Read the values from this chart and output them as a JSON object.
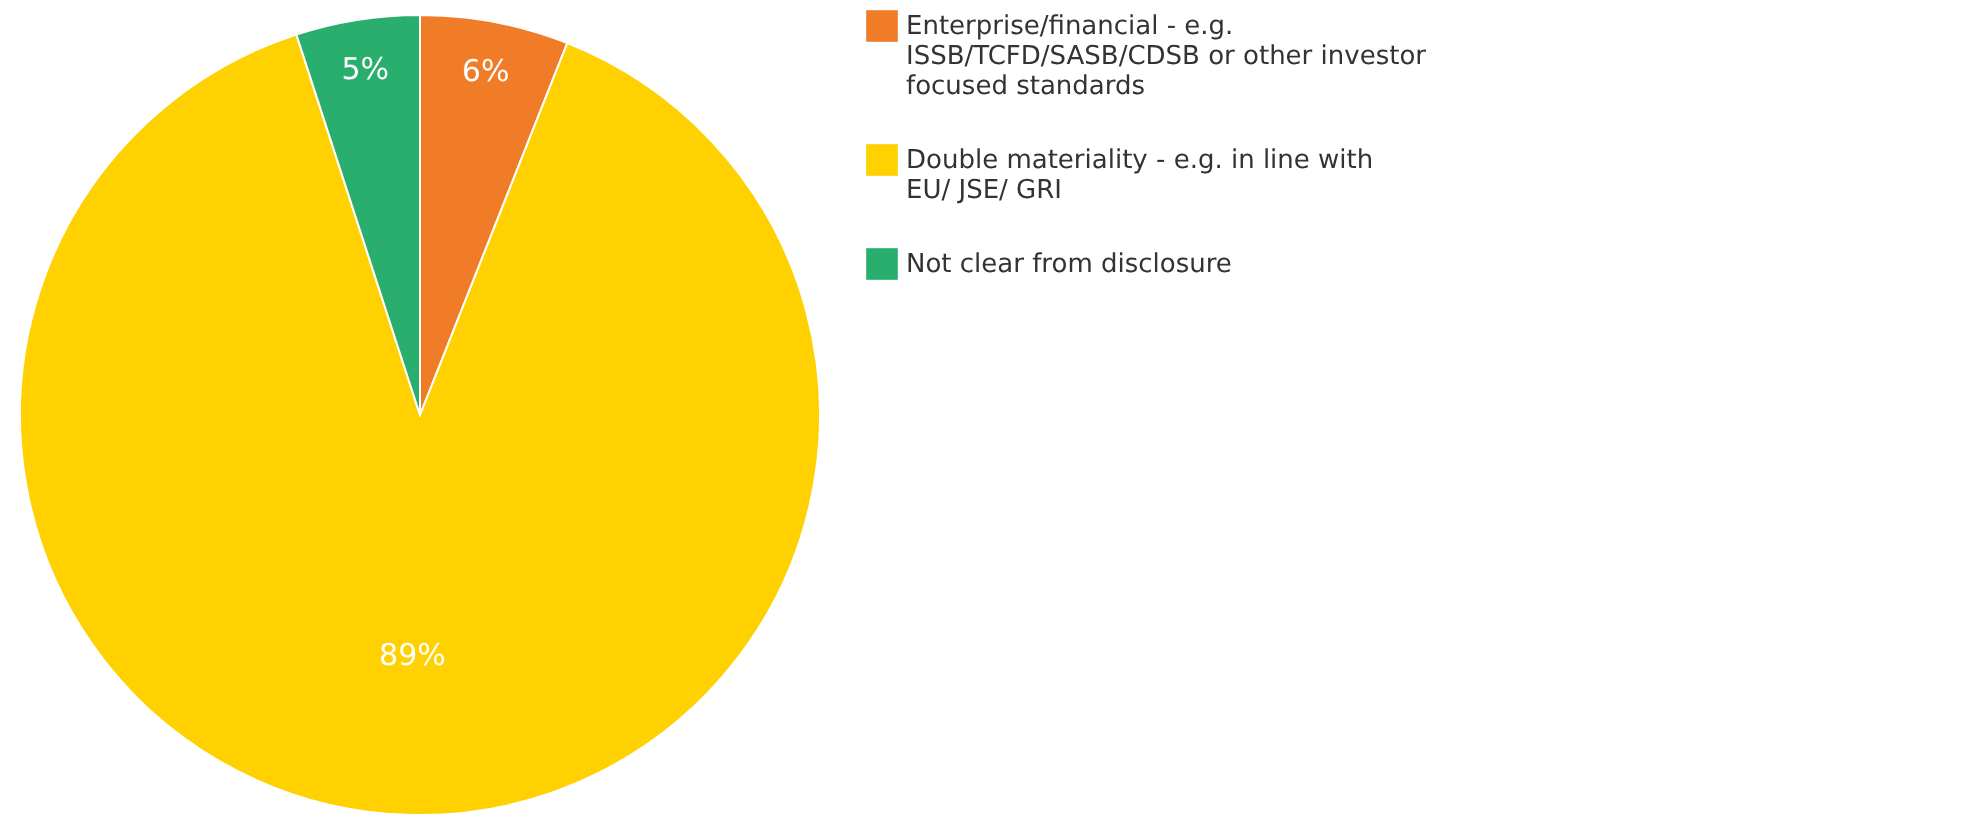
{
  "chart_data": {
    "type": "pie",
    "categories": [
      "Enterprise/financial - e.g. ISSB/TCFD/SASB/CDSB or other investor focused standards",
      "Double materiality - e.g. in line with EU/ JSE/ GRI",
      "Not clear from disclosure"
    ],
    "values": [
      6,
      89,
      5
    ],
    "value_labels": [
      "6%",
      "89%",
      "5%"
    ],
    "colors": [
      "#f07c28",
      "#ffd100",
      "#2aae6e"
    ],
    "legend": "right"
  }
}
